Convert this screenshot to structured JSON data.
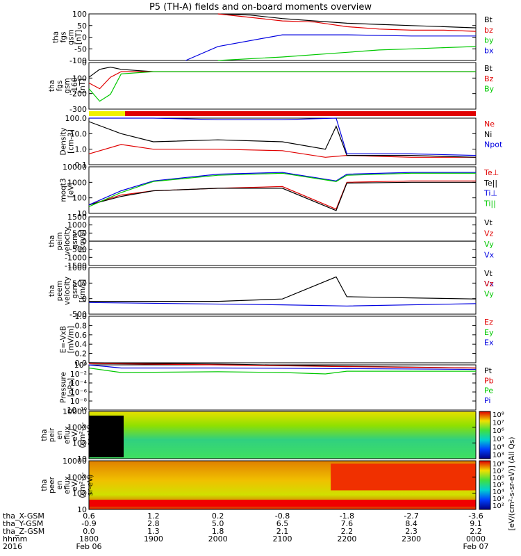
{
  "title": "P5 (TH-A) fields and on-board moments overview",
  "colors": {
    "black": "#000000",
    "red": "#e00000",
    "blue": "#0000e0",
    "green": "#00c800",
    "yellow": "#f0f000"
  },
  "chart_data": [
    {
      "type": "line",
      "panel": "tha fgs gsm",
      "ylabel": [
        "tha",
        "fgs",
        "gsm",
        "[nT]"
      ],
      "ylim": [
        -100,
        100
      ],
      "yticks": [
        "100",
        "50",
        "0",
        "-50",
        "-100"
      ],
      "series": [
        {
          "name": "Bt",
          "color": "#000000",
          "x": [
            2000,
            2030,
            2100,
            2130,
            2200,
            2230,
            2300,
            2330,
            2400
          ],
          "y": [
            100,
            95,
            80,
            70,
            60,
            55,
            50,
            45,
            40
          ]
        },
        {
          "name": "bz",
          "color": "#e00000",
          "x": [
            2000,
            2030,
            2100,
            2130,
            2200,
            2230,
            2300,
            2330,
            2400
          ],
          "y": [
            100,
            85,
            70,
            65,
            45,
            35,
            30,
            30,
            25
          ]
        },
        {
          "name": "by",
          "color": "#00c800",
          "x": [
            2000,
            2100,
            2200,
            2230,
            2300,
            2330,
            2400
          ],
          "y": [
            -100,
            -85,
            -65,
            -55,
            -50,
            -45,
            -40
          ]
        },
        {
          "name": "bx",
          "color": "#0000e0",
          "x": [
            1930,
            2000,
            2100,
            2200,
            2300,
            2400
          ],
          "y": [
            -100,
            -40,
            10,
            10,
            5,
            5
          ]
        }
      ]
    },
    {
      "type": "line",
      "panel": "tha fgs gsm -160",
      "ylabel": [
        "tha",
        "fgs",
        "gsm",
        "-160",
        "[nT]"
      ],
      "ylim": [
        -330,
        80
      ],
      "yticks": [
        "0",
        "-100",
        "-200",
        "-300"
      ],
      "series": [
        {
          "name": "Bt",
          "color": "#000000",
          "x": [
            1800,
            1810,
            1820,
            1830,
            1900,
            2000,
            2400
          ],
          "y": [
            -50,
            20,
            40,
            20,
            0,
            0,
            0
          ]
        },
        {
          "name": "Bz",
          "color": "#e00000",
          "x": [
            1800,
            1810,
            1820,
            1830,
            1900,
            2400
          ],
          "y": [
            -100,
            -150,
            -50,
            0,
            0,
            0
          ]
        },
        {
          "name": "By",
          "color": "#00c800",
          "x": [
            1800,
            1810,
            1820,
            1830,
            1900,
            2400
          ],
          "y": [
            -150,
            -260,
            -200,
            -20,
            0,
            0
          ]
        }
      ]
    },
    {
      "type": "line",
      "panel": "Density",
      "ylabel": [
        "Density",
        "[cm-3]"
      ],
      "log": true,
      "ylim": [
        0.1,
        100
      ],
      "yticks": [
        "100.0",
        "10.0",
        "1.0",
        "0.1"
      ],
      "series": [
        {
          "name": "Ne",
          "color": "#e00000",
          "x": [
            1800,
            1830,
            1900,
            2000,
            2100,
            2140,
            2200,
            2300,
            2400
          ],
          "y": [
            0.5,
            2,
            1,
            1,
            0.8,
            0.3,
            0.4,
            0.3,
            0.3
          ]
        },
        {
          "name": "Ni",
          "color": "#000000",
          "x": [
            1800,
            1830,
            1900,
            2000,
            2100,
            2140,
            2150,
            2200,
            2300,
            2400
          ],
          "y": [
            60,
            10,
            3,
            4,
            3,
            1,
            30,
            0.4,
            0.4,
            0.3
          ]
        },
        {
          "name": "Npot",
          "color": "#0000e0",
          "x": [
            1800,
            1830,
            1900,
            2000,
            2100,
            2150,
            2200,
            2300,
            2400
          ],
          "y": [
            100,
            100,
            100,
            80,
            80,
            100,
            0.5,
            0.5,
            0.4
          ]
        }
      ]
    },
    {
      "type": "line",
      "panel": "moqt3",
      "ylabel": [
        "moqt3",
        "[eV]"
      ],
      "log": true,
      "ylim": [
        5,
        10000
      ],
      "yticks": [
        "10000",
        "1000",
        "100",
        "10"
      ],
      "series": [
        {
          "name": "Te⊥",
          "color": "#e00000",
          "x": [
            1800,
            1830,
            1900,
            2000,
            2100,
            2150,
            2200,
            2300,
            2400
          ],
          "y": [
            20,
            100,
            200,
            300,
            400,
            10,
            800,
            1000,
            1000
          ]
        },
        {
          "name": "Te||",
          "color": "#000000",
          "x": [
            1800,
            1830,
            1900,
            2000,
            2100,
            2150,
            2200,
            2300,
            2400
          ],
          "y": [
            20,
            80,
            200,
            300,
            300,
            8,
            700,
            800,
            800
          ]
        },
        {
          "name": "Ti⊥",
          "color": "#0000e0",
          "x": [
            1800,
            1830,
            1900,
            2000,
            2100,
            2150,
            2200,
            2300,
            2400
          ],
          "y": [
            20,
            200,
            1000,
            3000,
            4000,
            1000,
            3000,
            4000,
            4000
          ]
        },
        {
          "name": "Ti||",
          "color": "#00c800",
          "x": [
            1800,
            1830,
            1900,
            2000,
            2100,
            2150,
            2200,
            2300,
            2400
          ],
          "y": [
            15,
            150,
            900,
            2500,
            3500,
            900,
            2500,
            3500,
            3500
          ]
        }
      ]
    },
    {
      "type": "line",
      "panel": "tha peim velocity gsm",
      "ylabel": [
        "tha",
        "peim",
        "velocity",
        "gsm",
        "[km/s]"
      ],
      "ylim": [
        -1500,
        1500
      ],
      "yticks": [
        "1500",
        "1000",
        "500",
        "0",
        "-500",
        "-1000",
        "-1500"
      ],
      "series": [
        {
          "name": "Vt",
          "color": "#000000",
          "x": [
            1800,
            2400
          ],
          "y": [
            0,
            0
          ]
        }
      ]
    },
    {
      "type": "line",
      "panel": "tha peem velocity gsm",
      "ylabel": [
        "tha",
        "peem",
        "velocity",
        "gsm",
        "[km/s]"
      ],
      "ylim": [
        -500,
        1500
      ],
      "yticks": [
        "1000",
        "500",
        "0",
        "-500"
      ],
      "series": [
        {
          "name": "Vt",
          "color": "#000000",
          "x": [
            1800,
            2000,
            2100,
            2150,
            2200,
            2300,
            2400
          ],
          "y": [
            50,
            50,
            150,
            1100,
            250,
            200,
            150
          ]
        },
        {
          "name": "Vx",
          "color": "#0000e0",
          "x": [
            1800,
            2100,
            2200,
            2400
          ],
          "y": [
            0,
            -100,
            -150,
            -50
          ]
        }
      ]
    },
    {
      "type": "line",
      "panel": "E=-VxB",
      "ylabel": [
        "E=-VxB",
        "[mV/m]"
      ],
      "ylim": [
        0,
        1
      ],
      "yticks": [
        "1.0",
        "0.8",
        "0.6",
        "0.4",
        "0.2",
        "0.0"
      ],
      "series": []
    },
    {
      "type": "line",
      "panel": "Pressure",
      "ylabel": [
        "Pressure",
        "[nPa]"
      ],
      "log": true,
      "ylim": [
        1e-10,
        1
      ],
      "yticks": [
        "10⁰",
        "10⁻²",
        "10⁻⁴",
        "10⁻⁶",
        "10⁻⁸",
        "10⁻¹⁰"
      ],
      "series": [
        {
          "name": "Pt",
          "color": "#000000",
          "x": [
            1800,
            2000,
            2200,
            2400
          ],
          "y": [
            3,
            1.5,
            0.5,
            0.2
          ]
        },
        {
          "name": "Pb",
          "color": "#e00000",
          "x": [
            1800,
            2000,
            2200,
            2400
          ],
          "y": [
            2,
            1,
            0.4,
            0.2
          ]
        },
        {
          "name": "Pe",
          "color": "#00c800",
          "x": [
            1800,
            1830,
            2000,
            2100,
            2140,
            2200,
            2400
          ],
          "y": [
            0.2,
            0.02,
            0.03,
            0.02,
            0.01,
            0.04,
            0.04
          ]
        },
        {
          "name": "Pi",
          "color": "#0000e0",
          "x": [
            1800,
            1830,
            2000,
            2200,
            2400
          ],
          "y": [
            1,
            0.2,
            0.2,
            0.15,
            0.1
          ]
        }
      ]
    },
    {
      "type": "heatmap",
      "panel": "tha peir en eflux",
      "ylabel": [
        "tha",
        "peir",
        "en",
        "eflux",
        "eV/",
        "(cm²-s-",
        "sr-eV)"
      ],
      "log": true,
      "ylim": [
        10,
        20000
      ],
      "yticks": [
        "10000",
        "1000",
        "100",
        "10"
      ]
    },
    {
      "type": "heatmap",
      "panel": "tha peer en eflux",
      "ylabel": [
        "tha",
        "peer",
        "en",
        "eflux",
        "eV/",
        "(cm²-s-",
        "sr-eV)"
      ],
      "log": true,
      "ylim": [
        10,
        20000
      ],
      "yticks": [
        "10000",
        "1000",
        "100",
        "10"
      ]
    }
  ],
  "colorbar": {
    "label": "[eV/(cm²-s-sr-eV)] (All Qs)",
    "ticks1": [
      "10⁸",
      "10⁷",
      "10⁶",
      "10⁵",
      "10⁴",
      "10³"
    ],
    "ticks2": [
      "10⁸",
      "10⁷",
      "10⁶",
      "10⁵",
      "10⁴",
      "10³",
      "10²"
    ]
  },
  "axis": {
    "rows": [
      {
        "label": "tha_X-GSM",
        "values": [
          "0.6",
          "1.2",
          "0.2",
          "-0.8",
          "-1.8",
          "-2.7",
          "-3.6"
        ]
      },
      {
        "label": "tha_Y-GSM",
        "values": [
          "-0.9",
          "2.8",
          "5.0",
          "6.5",
          "7.6",
          "8.4",
          "9.1"
        ]
      },
      {
        "label": "tha_Z-GSM",
        "values": [
          "0.0",
          "1.3",
          "1.8",
          "2.1",
          "2.2",
          "2.3",
          "2.2"
        ]
      },
      {
        "label": "hhmm",
        "values": [
          "1800",
          "1900",
          "2000",
          "2100",
          "2200",
          "2300",
          "0000"
        ]
      }
    ],
    "year": "2016",
    "date_start": "Feb 06",
    "date_end": "Feb 07"
  }
}
